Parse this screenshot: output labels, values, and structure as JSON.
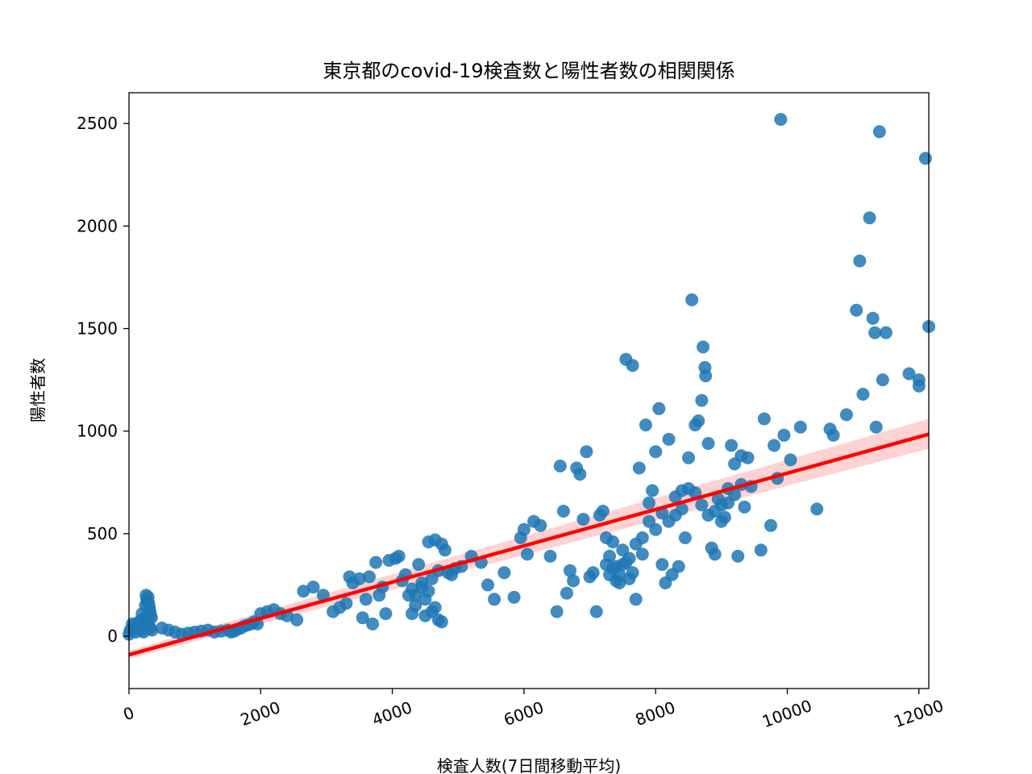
{
  "chart_data": {
    "type": "scatter",
    "title": "東京都のcovid-19検査数と陽性者数の相関関係",
    "xlabel": "検査人数(7日間移動平均)",
    "ylabel": "陽性者数",
    "xlim": [
      0,
      12150
    ],
    "ylim": [
      -255,
      2650
    ],
    "grid": false,
    "x_ticks": [
      0,
      2000,
      4000,
      6000,
      8000,
      10000,
      12000
    ],
    "x_tick_labels": [
      "0",
      "2000",
      "4000",
      "6000",
      "8000",
      "10000",
      "12000"
    ],
    "y_ticks": [
      0,
      500,
      1000,
      1500,
      2000,
      2500
    ],
    "y_tick_labels": [
      "0",
      "500",
      "1000",
      "1500",
      "2000",
      "2500"
    ],
    "colors": {
      "points": "#1f77b4",
      "regression_line": "#ff0000",
      "confidence_band": "#ffc0c0"
    },
    "regression": {
      "x": [
        0,
        12150
      ],
      "y": [
        -90,
        985
      ],
      "band_start": [
        -110,
        -70
      ],
      "band_end": [
        915,
        1060
      ]
    },
    "points": [
      [
        0,
        10
      ],
      [
        20,
        30
      ],
      [
        50,
        60
      ],
      [
        80,
        50
      ],
      [
        100,
        20
      ],
      [
        120,
        40
      ],
      [
        150,
        70
      ],
      [
        180,
        30
      ],
      [
        200,
        80
      ],
      [
        220,
        20
      ],
      [
        250,
        150
      ],
      [
        260,
        200
      ],
      [
        270,
        180
      ],
      [
        280,
        170
      ],
      [
        290,
        190
      ],
      [
        300,
        160
      ],
      [
        310,
        140
      ],
      [
        320,
        120
      ],
      [
        330,
        100
      ],
      [
        340,
        90
      ],
      [
        280,
        60
      ],
      [
        300,
        50
      ],
      [
        320,
        40
      ],
      [
        250,
        90
      ],
      [
        200,
        110
      ],
      [
        350,
        30
      ],
      [
        500,
        40
      ],
      [
        600,
        30
      ],
      [
        700,
        20
      ],
      [
        800,
        10
      ],
      [
        900,
        15
      ],
      [
        1000,
        20
      ],
      [
        1100,
        25
      ],
      [
        1200,
        30
      ],
      [
        1300,
        20
      ],
      [
        1400,
        25
      ],
      [
        1500,
        30
      ],
      [
        1550,
        20
      ],
      [
        1600,
        25
      ],
      [
        1650,
        35
      ],
      [
        1700,
        40
      ],
      [
        1750,
        50
      ],
      [
        1800,
        55
      ],
      [
        1850,
        60
      ],
      [
        1900,
        70
      ],
      [
        1950,
        60
      ],
      [
        2000,
        110
      ],
      [
        2100,
        120
      ],
      [
        2200,
        130
      ],
      [
        2300,
        110
      ],
      [
        2400,
        100
      ],
      [
        2550,
        80
      ],
      [
        2650,
        220
      ],
      [
        2800,
        240
      ],
      [
        2950,
        200
      ],
      [
        3100,
        120
      ],
      [
        3200,
        140
      ],
      [
        3300,
        160
      ],
      [
        3350,
        290
      ],
      [
        3400,
        260
      ],
      [
        3500,
        280
      ],
      [
        3550,
        90
      ],
      [
        3600,
        180
      ],
      [
        3650,
        290
      ],
      [
        3700,
        60
      ],
      [
        3750,
        360
      ],
      [
        3800,
        200
      ],
      [
        3850,
        240
      ],
      [
        3900,
        110
      ],
      [
        3950,
        370
      ],
      [
        4050,
        380
      ],
      [
        4100,
        390
      ],
      [
        4150,
        270
      ],
      [
        4200,
        300
      ],
      [
        4250,
        200
      ],
      [
        4300,
        230
      ],
      [
        4350,
        150
      ],
      [
        4400,
        350
      ],
      [
        4450,
        260
      ],
      [
        4500,
        180
      ],
      [
        4550,
        460
      ],
      [
        4600,
        280
      ],
      [
        4650,
        470
      ],
      [
        4700,
        320
      ],
      [
        4750,
        450
      ],
      [
        4800,
        420
      ],
      [
        4850,
        310
      ],
      [
        4900,
        300
      ],
      [
        4950,
        330
      ],
      [
        5050,
        340
      ],
      [
        4500,
        100
      ],
      [
        4600,
        120
      ],
      [
        4700,
        80
      ],
      [
        4750,
        70
      ],
      [
        4650,
        140
      ],
      [
        4550,
        220
      ],
      [
        4450,
        240
      ],
      [
        4350,
        200
      ],
      [
        4300,
        110
      ],
      [
        5200,
        390
      ],
      [
        5350,
        360
      ],
      [
        5450,
        250
      ],
      [
        5550,
        180
      ],
      [
        5700,
        310
      ],
      [
        5850,
        190
      ],
      [
        5950,
        480
      ],
      [
        6000,
        520
      ],
      [
        6050,
        400
      ],
      [
        6150,
        560
      ],
      [
        6250,
        540
      ],
      [
        6400,
        390
      ],
      [
        6500,
        120
      ],
      [
        6550,
        830
      ],
      [
        6600,
        610
      ],
      [
        6650,
        210
      ],
      [
        6700,
        320
      ],
      [
        6750,
        270
      ],
      [
        6800,
        820
      ],
      [
        6850,
        790
      ],
      [
        6900,
        570
      ],
      [
        6950,
        900
      ],
      [
        7000,
        290
      ],
      [
        7050,
        310
      ],
      [
        7100,
        120
      ],
      [
        7150,
        590
      ],
      [
        7200,
        610
      ],
      [
        7250,
        480
      ],
      [
        7300,
        300
      ],
      [
        7350,
        460
      ],
      [
        7400,
        270
      ],
      [
        7450,
        260
      ],
      [
        7500,
        350
      ],
      [
        7550,
        1350
      ],
      [
        7600,
        280
      ],
      [
        7650,
        1320
      ],
      [
        7700,
        180
      ],
      [
        7750,
        820
      ],
      [
        7800,
        400
      ],
      [
        7850,
        1030
      ],
      [
        7900,
        650
      ],
      [
        7950,
        710
      ],
      [
        8000,
        900
      ],
      [
        8050,
        1110
      ],
      [
        8100,
        350
      ],
      [
        8150,
        260
      ],
      [
        8200,
        960
      ],
      [
        8250,
        300
      ],
      [
        8300,
        680
      ],
      [
        8350,
        340
      ],
      [
        8400,
        710
      ],
      [
        8450,
        480
      ],
      [
        8500,
        870
      ],
      [
        8550,
        1640
      ],
      [
        8600,
        1030
      ],
      [
        8650,
        1050
      ],
      [
        8700,
        1150
      ],
      [
        8720,
        1410
      ],
      [
        8750,
        1310
      ],
      [
        8760,
        1270
      ],
      [
        8800,
        940
      ],
      [
        8850,
        430
      ],
      [
        8900,
        400
      ],
      [
        8950,
        670
      ],
      [
        9000,
        640
      ],
      [
        9050,
        580
      ],
      [
        9100,
        720
      ],
      [
        9150,
        930
      ],
      [
        9200,
        840
      ],
      [
        9250,
        390
      ],
      [
        9300,
        880
      ],
      [
        9350,
        630
      ],
      [
        9400,
        870
      ],
      [
        9450,
        730
      ],
      [
        9600,
        420
      ],
      [
        9650,
        1060
      ],
      [
        9750,
        540
      ],
      [
        9800,
        930
      ],
      [
        9850,
        770
      ],
      [
        9900,
        2520
      ],
      [
        9950,
        980
      ],
      [
        10050,
        860
      ],
      [
        10200,
        1020
      ],
      [
        10450,
        620
      ],
      [
        10650,
        1010
      ],
      [
        10700,
        980
      ],
      [
        10900,
        1080
      ],
      [
        11050,
        1590
      ],
      [
        11100,
        1830
      ],
      [
        11150,
        1180
      ],
      [
        11250,
        2040
      ],
      [
        11300,
        1550
      ],
      [
        11330,
        1480
      ],
      [
        11350,
        1020
      ],
      [
        11400,
        2460
      ],
      [
        11450,
        1250
      ],
      [
        11500,
        1480
      ],
      [
        11850,
        1280
      ],
      [
        12000,
        1250
      ],
      [
        12000,
        1220
      ],
      [
        12100,
        2330
      ],
      [
        12150,
        1510
      ],
      [
        7300,
        390
      ],
      [
        7400,
        340
      ],
      [
        7500,
        420
      ],
      [
        7600,
        380
      ],
      [
        7350,
        330
      ],
      [
        7450,
        300
      ],
      [
        7550,
        360
      ],
      [
        7250,
        350
      ],
      [
        7650,
        310
      ],
      [
        7700,
        450
      ],
      [
        7800,
        480
      ],
      [
        7900,
        560
      ],
      [
        8000,
        520
      ],
      [
        8100,
        600
      ],
      [
        8200,
        560
      ],
      [
        8300,
        590
      ],
      [
        8400,
        620
      ],
      [
        8500,
        720
      ],
      [
        8600,
        700
      ],
      [
        8700,
        640
      ],
      [
        8800,
        590
      ],
      [
        8900,
        610
      ],
      [
        9000,
        560
      ],
      [
        9100,
        650
      ],
      [
        9200,
        690
      ],
      [
        9300,
        740
      ]
    ]
  }
}
